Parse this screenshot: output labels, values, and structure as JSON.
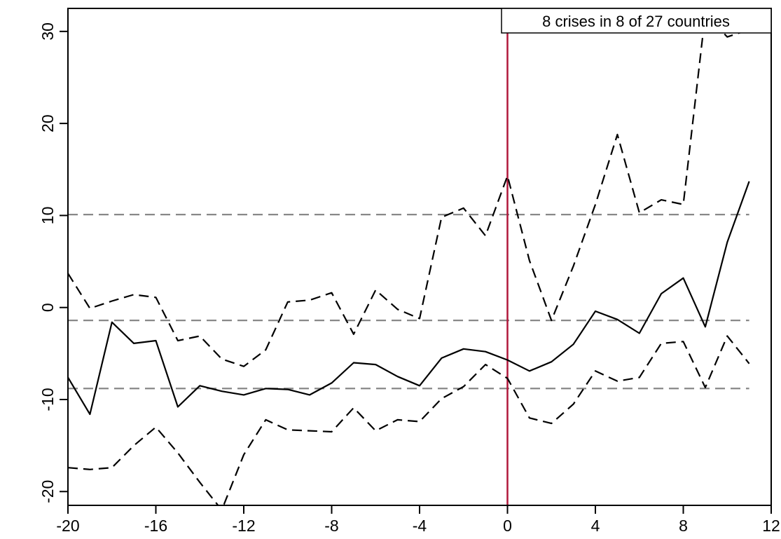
{
  "chart_data": {
    "type": "line",
    "title": "",
    "xlabel": "",
    "ylabel": "",
    "xlim": [
      -20,
      12
    ],
    "ylim": [
      -21.5,
      32.5
    ],
    "x_ticks": [
      -20,
      -16,
      -12,
      -8,
      -4,
      0,
      4,
      8,
      12
    ],
    "y_ticks": [
      -20,
      -10,
      0,
      10,
      20,
      30
    ],
    "x_tick_labels": [
      "-20",
      "-16",
      "-12",
      "-8",
      "-4",
      "0",
      "4",
      "8",
      "12"
    ],
    "y_tick_labels": [
      "-20",
      "-10",
      "0",
      "10",
      "20",
      "30"
    ],
    "legend_text": "8 crises in 8 of 27 countries",
    "legend_position": "top-right",
    "grid": false,
    "x": [
      -20,
      -19,
      -18,
      -17,
      -16,
      -15,
      -14,
      -13,
      -12,
      -11,
      -10,
      -9,
      -8,
      -7,
      -6,
      -5,
      -4,
      -3,
      -2,
      -1,
      0,
      1,
      2,
      3,
      4,
      5,
      6,
      7,
      8,
      9,
      10,
      11
    ],
    "series": [
      {
        "style": "dashed",
        "color": "#000000",
        "values": [
          3.7,
          -0.1,
          0.7,
          1.4,
          1.1,
          -3.6,
          -3.1,
          -5.6,
          -6.4,
          -4.6,
          0.6,
          0.8,
          1.6,
          -2.9,
          1.9,
          -0.2,
          -1.2,
          9.8,
          10.8,
          7.8,
          14.3,
          5.1,
          -1.4,
          4.5,
          11.2,
          18.8,
          10.3,
          11.7,
          11.2,
          31.9,
          29.4,
          30.2
        ]
      },
      {
        "style": "solid",
        "color": "#000000",
        "values": [
          -7.6,
          -11.6,
          -1.6,
          -3.9,
          -3.6,
          -10.8,
          -8.5,
          -9.1,
          -9.5,
          -8.8,
          -8.9,
          -9.5,
          -8.2,
          -6.0,
          -6.2,
          -7.5,
          -8.5,
          -5.5,
          -4.5,
          -4.8,
          -5.7,
          -6.9,
          -5.9,
          -4.0,
          -0.4,
          -1.3,
          -2.8,
          1.5,
          3.2,
          -2.1,
          7.1,
          13.7
        ]
      },
      {
        "style": "dashed",
        "color": "#000000",
        "values": [
          -17.4,
          -17.6,
          -17.4,
          -15.0,
          -13.0,
          -15.8,
          -19.0,
          -22.0,
          -16.0,
          -12.2,
          -13.3,
          -13.4,
          -13.5,
          -10.9,
          -13.4,
          -12.2,
          -12.4,
          -9.9,
          -8.6,
          -6.2,
          -7.7,
          -12.0,
          -12.6,
          -10.5,
          -6.9,
          -8.0,
          -7.6,
          -3.9,
          -3.7,
          -8.7,
          -3.1,
          -6.1
        ]
      }
    ],
    "reference_lines": [
      {
        "orientation": "horizontal",
        "value": 10.1,
        "style": "dashed",
        "color": "#888888"
      },
      {
        "orientation": "horizontal",
        "value": -1.4,
        "style": "dashed",
        "color": "#888888"
      },
      {
        "orientation": "horizontal",
        "value": -8.8,
        "style": "dashed",
        "color": "#888888"
      },
      {
        "orientation": "vertical",
        "value": 0,
        "style": "solid",
        "color": "#b0173a"
      }
    ]
  }
}
